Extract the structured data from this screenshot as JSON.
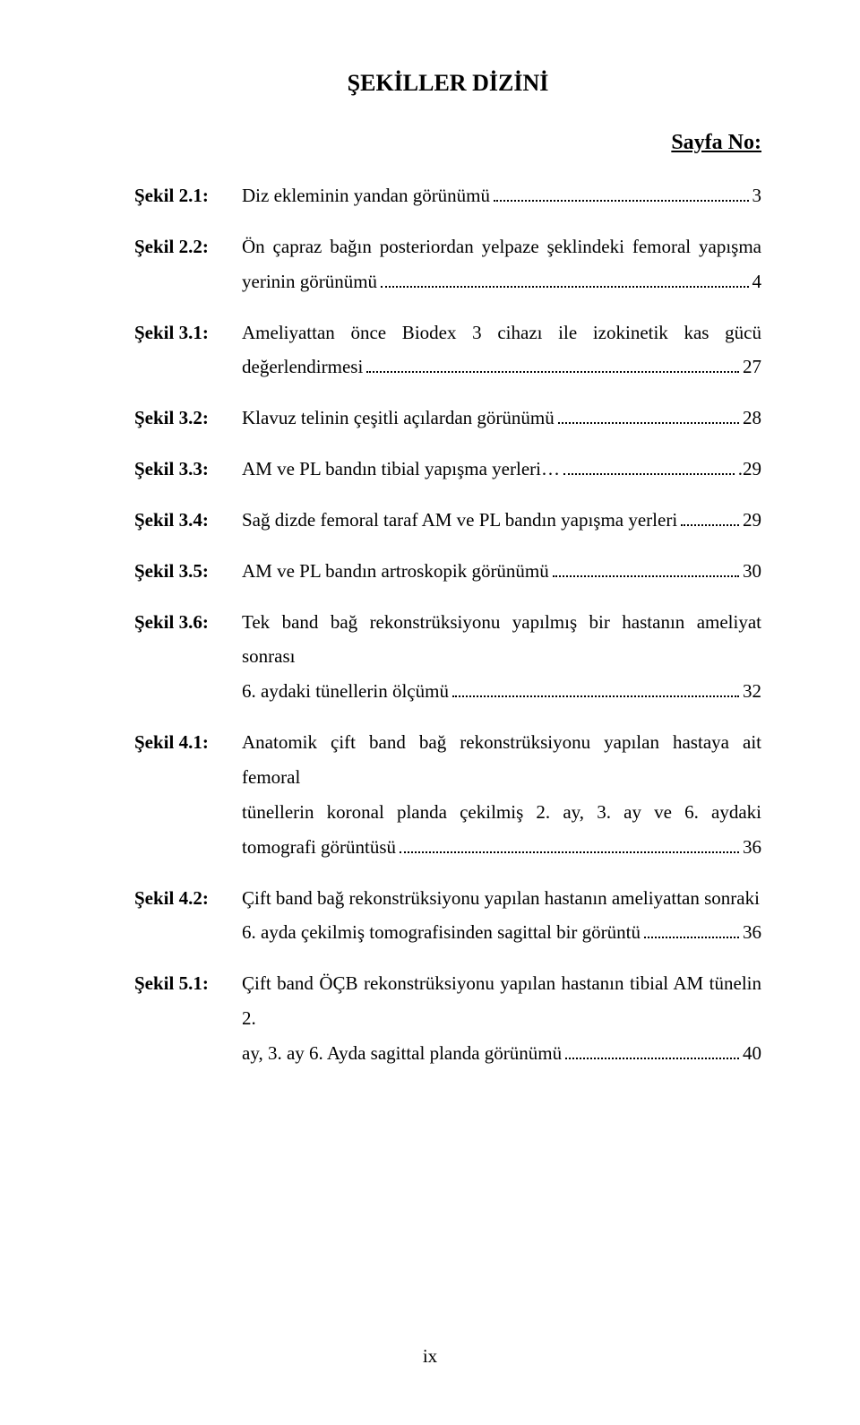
{
  "title": "ŞEKİLLER DİZİNİ",
  "page_no_label": "Sayfa No:",
  "footer": "ix",
  "entries": [
    {
      "label": "Şekil 2.1:",
      "lines": [
        {
          "text": "Diz ekleminin yandan görünümü",
          "page": "3",
          "dots": true
        }
      ]
    },
    {
      "label": "Şekil 2.2:",
      "lines": [
        {
          "text": "Ön çapraz bağın posteriordan yelpaze şeklindeki femoral yapışma",
          "dots": false,
          "page": null,
          "justify": true
        },
        {
          "text": "yerinin görünümü",
          "page": "4",
          "dots": true
        }
      ]
    },
    {
      "label": "Şekil 3.1:",
      "lines": [
        {
          "text": "Ameliyattan önce Biodex 3 cihazı ile izokinetik kas gücü",
          "dots": false,
          "page": null,
          "justify": true
        },
        {
          "text": "değerlendirmesi",
          "page": "27",
          "dots": true
        }
      ]
    },
    {
      "label": "Şekil 3.2:",
      "lines": [
        {
          "text": "Klavuz telinin çeşitli açılardan görünümü",
          "page": "28",
          "dots": true
        }
      ]
    },
    {
      "label": "Şekil 3.3:",
      "lines": [
        {
          "text": "AM ve PL bandın tibial yapışma yerleri…",
          "page": ".29",
          "dots": true
        }
      ]
    },
    {
      "label": "Şekil 3.4:",
      "lines": [
        {
          "text": "Sağ dizde femoral taraf AM ve PL bandın yapışma yerleri",
          "page": "29",
          "dots": true
        }
      ]
    },
    {
      "label": "Şekil 3.5:",
      "lines": [
        {
          "text": "AM ve PL bandın artroskopik görünümü",
          "page": "30",
          "dots": true
        }
      ]
    },
    {
      "label": "Şekil 3.6:",
      "lines": [
        {
          "text": "Tek band bağ rekonstrüksiyonu yapılmış bir hastanın ameliyat sonrası",
          "dots": false,
          "page": null
        },
        {
          "text": "6. aydaki tünellerin ölçümü",
          "page": "32",
          "dots": true
        }
      ]
    },
    {
      "label": "Şekil 4.1:",
      "lines": [
        {
          "text": "Anatomik çift band bağ rekonstrüksiyonu yapılan hastaya ait femoral",
          "dots": false,
          "page": null
        },
        {
          "text": "tünellerin koronal planda çekilmiş 2. ay, 3. ay ve 6. aydaki",
          "dots": false,
          "page": null,
          "justify": true
        },
        {
          "text": "tomografi görüntüsü",
          "page": "36",
          "dots": true
        }
      ]
    },
    {
      "label": "Şekil 4.2:",
      "lines": [
        {
          "text": "Çift band bağ rekonstrüksiyonu yapılan hastanın ameliyattan sonraki",
          "dots": false,
          "page": null
        },
        {
          "text": "6. ayda çekilmiş tomografisinden sagittal bir görüntü",
          "page": "36",
          "dots": true
        }
      ]
    },
    {
      "label": "Şekil 5.1:",
      "lines": [
        {
          "text": "Çift band ÖÇB rekonstrüksiyonu yapılan hastanın tibial AM tünelin 2.",
          "dots": false,
          "page": null
        },
        {
          "text": "ay, 3. ay 6. Ayda sagittal planda görünümü",
          "page": "40",
          "dots": true
        }
      ]
    }
  ]
}
